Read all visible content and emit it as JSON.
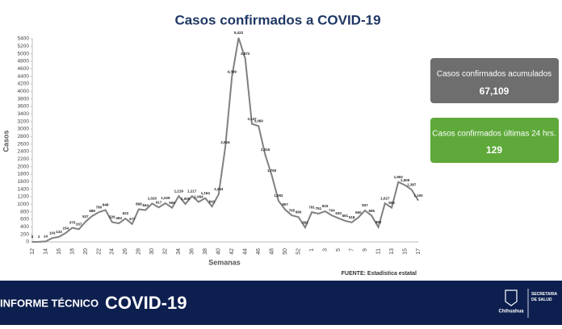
{
  "chart_data": {
    "type": "line",
    "title": "Casos confirmados a COVID-19",
    "x_label": "Semanas",
    "y_label": "Casos",
    "source": "FUENTE: Estadística estatal",
    "categories": [
      "12",
      null,
      "14",
      null,
      "16",
      null,
      "18",
      null,
      "20",
      null,
      "22",
      null,
      "24",
      null,
      "26",
      null,
      "28",
      null,
      "30",
      null,
      "32",
      null,
      "34",
      null,
      "36",
      null,
      "38",
      null,
      "40",
      null,
      "42",
      null,
      "44",
      null,
      "46",
      null,
      "48",
      null,
      "50",
      null,
      "52",
      null,
      "1",
      null,
      "3",
      null,
      "5",
      null,
      "7",
      null,
      "9",
      null,
      "11",
      null,
      "13",
      null,
      "15",
      null,
      "17"
    ],
    "values": [
      0,
      2,
      14,
      103,
      133,
      234,
      375,
      337,
      537,
      689,
      790,
      848,
      526,
      494,
      622,
      477,
      868,
      844,
      1020,
      917,
      1029,
      906,
      1219,
      1009,
      1217,
      1064,
      1164,
      941,
      1263,
      2515,
      4389,
      5422,
      4872,
      3137,
      3080,
      2316,
      1760,
      1092,
      857,
      705,
      660,
      382,
      791,
      751,
      815,
      704,
      630,
      561,
      518,
      650,
      837,
      695,
      393,
      1027,
      908,
      1592,
      1509,
      1387,
      1100
    ],
    "value_labels": [
      "0",
      "2",
      "14",
      "103",
      "133",
      "234",
      "375",
      "337",
      "537",
      "689",
      "790",
      "848",
      "526",
      "494",
      "622",
      "477",
      "868",
      "844",
      "1,020",
      "917",
      "1,029",
      "906",
      "1,219",
      "1,009",
      "1,217",
      "1,064",
      "1,164",
      "941",
      "1,263",
      "2,515",
      "4,389",
      "5,422",
      "4,872",
      "3,137",
      "3,080",
      "2,316",
      "1,760",
      "1,092",
      "857",
      "705",
      "660",
      "382",
      "791",
      "751",
      "815",
      "704",
      "630",
      "561",
      "518",
      "650",
      "837",
      "695",
      "393",
      "1,027",
      "908",
      "1,592",
      "1,509",
      "1,387",
      "1,100"
    ],
    "color": "#808080",
    "ylim": [
      0,
      5400
    ],
    "yticks": [
      0,
      200,
      400,
      600,
      800,
      1000,
      1200,
      1400,
      1600,
      1800,
      2000,
      2200,
      2400,
      2600,
      2800,
      3000,
      3200,
      3400,
      3600,
      3800,
      4000,
      4200,
      4400,
      4600,
      4800,
      5000,
      5200,
      5400
    ]
  },
  "panels": [
    {
      "label": "Casos confirmados acumulados",
      "value": "67,109"
    },
    {
      "label": "Casos confirmados últimas 24 hrs.",
      "value": "129"
    }
  ],
  "footer": {
    "title": "INFORME TÉCNICO",
    "subtitle": "COVID-19",
    "logo": "Chihuahua",
    "department": "SECRETARÍA DE SALUD"
  }
}
